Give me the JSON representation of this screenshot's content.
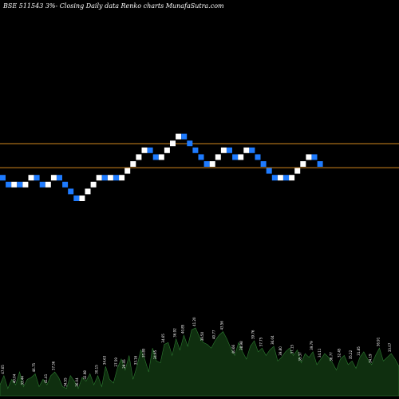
{
  "chart_data": {
    "type": "renko",
    "title": "BSE 511543 3%-  Closing Daily data  Renko  charts MunafaSutra.com",
    "colors": {
      "up_brick": "#ffffff",
      "down_brick": "#1e7bff",
      "reference_line": "#d2871e",
      "volume_fill": "#0f2f0f",
      "volume_stroke": "#2e7d32",
      "background": "#000000"
    },
    "reference_lines": [
      41.0,
      37.5
    ],
    "bricks": [
      {
        "dir": "down",
        "close": 35.5
      },
      {
        "dir": "down",
        "close": 34.5
      },
      {
        "dir": "up",
        "close": 35.5
      },
      {
        "dir": "down",
        "close": 34.5
      },
      {
        "dir": "up",
        "close": 35.5
      },
      {
        "dir": "up",
        "close": 36.5
      },
      {
        "dir": "down",
        "close": 35.5
      },
      {
        "dir": "down",
        "close": 34.5
      },
      {
        "dir": "up",
        "close": 35.5
      },
      {
        "dir": "up",
        "close": 36.5
      },
      {
        "dir": "down",
        "close": 35.5
      },
      {
        "dir": "down",
        "close": 34.5
      },
      {
        "dir": "down",
        "close": 33.5
      },
      {
        "dir": "down",
        "close": 32.5
      },
      {
        "dir": "up",
        "close": 33.5
      },
      {
        "dir": "up",
        "close": 34.5
      },
      {
        "dir": "up",
        "close": 35.5
      },
      {
        "dir": "up",
        "close": 36.5
      },
      {
        "dir": "down",
        "close": 35.5
      },
      {
        "dir": "up",
        "close": 36.5
      },
      {
        "dir": "down",
        "close": 35.5
      },
      {
        "dir": "up",
        "close": 36.5
      },
      {
        "dir": "up",
        "close": 37.5
      },
      {
        "dir": "up",
        "close": 38.5
      },
      {
        "dir": "up",
        "close": 39.5
      },
      {
        "dir": "up",
        "close": 40.5
      },
      {
        "dir": "down",
        "close": 39.5
      },
      {
        "dir": "down",
        "close": 38.5
      },
      {
        "dir": "up",
        "close": 39.5
      },
      {
        "dir": "up",
        "close": 40.5
      },
      {
        "dir": "up",
        "close": 41.5
      },
      {
        "dir": "up",
        "close": 42.5
      },
      {
        "dir": "down",
        "close": 41.5
      },
      {
        "dir": "down",
        "close": 40.5
      },
      {
        "dir": "down",
        "close": 39.5
      },
      {
        "dir": "down",
        "close": 38.5
      },
      {
        "dir": "down",
        "close": 37.5
      },
      {
        "dir": "up",
        "close": 38.5
      },
      {
        "dir": "up",
        "close": 39.5
      },
      {
        "dir": "up",
        "close": 40.5
      },
      {
        "dir": "down",
        "close": 39.5
      },
      {
        "dir": "down",
        "close": 38.5
      },
      {
        "dir": "up",
        "close": 39.5
      },
      {
        "dir": "up",
        "close": 40.5
      },
      {
        "dir": "down",
        "close": 39.5
      },
      {
        "dir": "down",
        "close": 38.5
      },
      {
        "dir": "down",
        "close": 37.5
      },
      {
        "dir": "down",
        "close": 36.5
      },
      {
        "dir": "down",
        "close": 35.5
      },
      {
        "dir": "up",
        "close": 36.5
      },
      {
        "dir": "down",
        "close": 35.5
      },
      {
        "dir": "up",
        "close": 36.5
      },
      {
        "dir": "up",
        "close": 37.5
      },
      {
        "dir": "up",
        "close": 38.5
      },
      {
        "dir": "up",
        "close": 39.5
      },
      {
        "dir": "down",
        "close": 38.5
      },
      {
        "dir": "down",
        "close": 37.5
      }
    ],
    "volume": [
      6,
      11,
      4,
      9,
      6,
      13,
      5,
      9,
      10,
      12,
      5,
      9,
      6,
      11,
      13,
      10,
      5,
      4,
      11,
      8,
      4,
      10,
      8,
      12,
      6,
      11,
      5,
      16,
      9,
      7,
      15,
      20,
      14,
      22,
      9,
      16,
      25,
      20,
      13,
      26,
      19,
      18,
      28,
      29,
      22,
      31,
      25,
      33,
      27,
      36,
      37,
      32,
      29,
      28,
      26,
      30,
      33,
      35,
      31,
      26,
      22,
      29,
      24,
      20,
      27,
      30,
      24,
      26,
      22,
      25,
      27,
      19,
      21,
      24,
      26,
      22,
      25,
      18,
      23,
      21,
      24,
      17,
      20,
      23,
      21,
      18,
      14,
      20,
      22,
      17,
      19,
      15,
      21,
      24,
      20,
      17,
      22,
      26,
      19,
      21,
      23,
      20,
      16
    ],
    "volume_labels": [
      {
        "text": "47.65",
        "at": 1
      },
      {
        "text": "40.04",
        "at": 4
      },
      {
        "text": "33.44",
        "at": 6
      },
      {
        "text": "46.75",
        "at": 9
      },
      {
        "text": "41.41",
        "at": 12
      },
      {
        "text": "37.36",
        "at": 14
      },
      {
        "text": "34.55",
        "at": 17
      },
      {
        "text": "36.04",
        "at": 20
      },
      {
        "text": "32.98",
        "at": 22
      },
      {
        "text": "30.15",
        "at": 25
      },
      {
        "text": "34.63",
        "at": 27
      },
      {
        "text": "27.59",
        "at": 30
      },
      {
        "text": "28.45",
        "at": 32
      },
      {
        "text": "33.16",
        "at": 35
      },
      {
        "text": "35.80",
        "at": 37
      },
      {
        "text": "34.95",
        "at": 40
      },
      {
        "text": "34.65",
        "at": 42
      },
      {
        "text": "36.92",
        "at": 45
      },
      {
        "text": "40.85",
        "at": 47
      },
      {
        "text": "41.20",
        "at": 50
      },
      {
        "text": "39.50",
        "at": 52
      },
      {
        "text": "40.77",
        "at": 55
      },
      {
        "text": "43.56",
        "at": 57
      },
      {
        "text": "40.66",
        "at": 60
      },
      {
        "text": "38.98",
        "at": 62
      },
      {
        "text": "39.76",
        "at": 65
      },
      {
        "text": "37.75",
        "at": 67
      },
      {
        "text": "36.04",
        "at": 70
      },
      {
        "text": "39.80",
        "at": 72
      },
      {
        "text": "37.15",
        "at": 75
      },
      {
        "text": "35.37",
        "at": 77
      },
      {
        "text": "39.79",
        "at": 80
      },
      {
        "text": "34.11",
        "at": 82
      },
      {
        "text": "36.77",
        "at": 85
      },
      {
        "text": "32.45",
        "at": 87
      },
      {
        "text": "35.22",
        "at": 90
      },
      {
        "text": "31.85",
        "at": 92
      },
      {
        "text": "34.19",
        "at": 95
      },
      {
        "text": "36.91",
        "at": 97
      },
      {
        "text": "33.07",
        "at": 100
      }
    ]
  }
}
